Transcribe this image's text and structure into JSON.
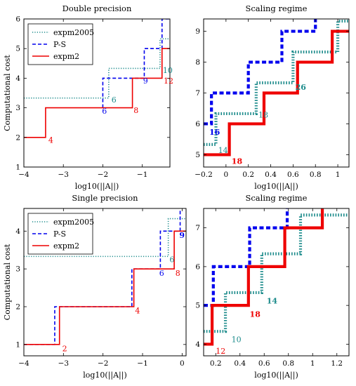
{
  "colors": {
    "expm2005": "#1a8a8a",
    "ps": "#0000ee",
    "expm2": "#ee0000",
    "frame": "#000000"
  },
  "chart_data": [
    {
      "type": "line",
      "title": "Double precision",
      "xlabel": "log10(||A||)",
      "ylabel": "Computational cost",
      "xlim": [
        -4,
        -0.3
      ],
      "ylim": [
        1,
        6
      ],
      "xticks": [
        -4,
        -3,
        -2,
        -1
      ],
      "yticks": [
        1,
        2,
        3,
        4,
        5,
        6
      ],
      "legend": {
        "position": "top-left",
        "entries": [
          "expm2005",
          "P-S",
          "expm2"
        ]
      },
      "series": [
        {
          "name": "expm2005",
          "style": "dotted",
          "width": "normal",
          "points": [
            [
              -4,
              3.33
            ],
            [
              -1.85,
              3.33
            ],
            [
              -1.85,
              4.33
            ],
            [
              -0.55,
              4.33
            ],
            [
              -0.55,
              5.33
            ],
            [
              -0.3,
              5.33
            ]
          ]
        },
        {
          "name": "P-S",
          "style": "dashed",
          "width": "normal",
          "points": [
            [
              -2,
              3
            ],
            [
              -2,
              4
            ],
            [
              -0.95,
              4
            ],
            [
              -0.95,
              5
            ],
            [
              -0.5,
              5
            ],
            [
              -0.5,
              6
            ],
            [
              -0.3,
              6
            ]
          ]
        },
        {
          "name": "expm2",
          "style": "solid",
          "width": "normal",
          "points": [
            [
              -4,
              2
            ],
            [
              -3.45,
              2
            ],
            [
              -3.45,
              3
            ],
            [
              -1.25,
              3
            ],
            [
              -1.25,
              4
            ],
            [
              -0.5,
              4
            ],
            [
              -0.5,
              5
            ],
            [
              -0.3,
              5
            ]
          ]
        }
      ],
      "annotations": [
        {
          "text": "4",
          "series": "expm2",
          "x": -3.38,
          "y": 1.82,
          "bold": false
        },
        {
          "text": "8",
          "series": "expm2",
          "x": -1.22,
          "y": 2.82,
          "bold": false
        },
        {
          "text": "12",
          "series": "expm2",
          "x": -0.46,
          "y": 3.82,
          "bold": false
        },
        {
          "text": "6",
          "series": "P-S",
          "x": -2.02,
          "y": 2.8,
          "bold": false
        },
        {
          "text": "9",
          "series": "P-S",
          "x": -0.98,
          "y": 3.82,
          "bold": false
        },
        {
          "text": "6",
          "series": "expm2005",
          "x": -1.78,
          "y": 3.18,
          "bold": false
        },
        {
          "text": "10",
          "series": "expm2005",
          "x": -0.48,
          "y": 4.18,
          "bold": false
        }
      ]
    },
    {
      "type": "line",
      "title": "Scaling regime",
      "xlabel": "log10(||A||)",
      "ylabel": "",
      "xlim": [
        -0.2,
        1.1
      ],
      "ylim": [
        4.6,
        9.4
      ],
      "xticks": [
        -0.2,
        0,
        0.2,
        0.4,
        0.6,
        0.8,
        1
      ],
      "yticks": [
        5,
        6,
        7,
        8,
        9
      ],
      "legend": null,
      "series": [
        {
          "name": "expm2005",
          "style": "dotted",
          "width": "thick",
          "points": [
            [
              -0.2,
              5.33
            ],
            [
              -0.09,
              5.33
            ],
            [
              -0.09,
              6.33
            ],
            [
              0.27,
              6.33
            ],
            [
              0.27,
              7.33
            ],
            [
              0.6,
              7.33
            ],
            [
              0.6,
              8.33
            ],
            [
              1.0,
              8.33
            ],
            [
              1.0,
              9.33
            ],
            [
              1.1,
              9.33
            ]
          ]
        },
        {
          "name": "P-S",
          "style": "dashed",
          "width": "thick",
          "points": [
            [
              -0.2,
              6
            ],
            [
              -0.13,
              6
            ],
            [
              -0.13,
              7
            ],
            [
              0.2,
              7
            ],
            [
              0.2,
              8
            ],
            [
              0.5,
              8
            ],
            [
              0.5,
              9
            ],
            [
              0.8,
              9
            ],
            [
              0.8,
              9.4
            ]
          ]
        },
        {
          "name": "expm2",
          "style": "solid",
          "width": "thick",
          "points": [
            [
              -0.2,
              5
            ],
            [
              0.03,
              5
            ],
            [
              0.03,
              6
            ],
            [
              0.34,
              6
            ],
            [
              0.34,
              7
            ],
            [
              0.64,
              7
            ],
            [
              0.64,
              8
            ],
            [
              0.95,
              8
            ],
            [
              0.95,
              9
            ],
            [
              1.1,
              9
            ]
          ]
        }
      ],
      "annotations": [
        {
          "text": "16",
          "series": "P-S",
          "x": -0.15,
          "y": 5.65,
          "bold": true
        },
        {
          "text": "18",
          "series": "expm2",
          "x": 0.05,
          "y": 4.7,
          "bold": true
        },
        {
          "text": "14",
          "series": "expm2005",
          "x": -0.07,
          "y": 5.05,
          "bold": false
        },
        {
          "text": "18",
          "series": "expm2005",
          "x": 0.29,
          "y": 6.2,
          "bold": false
        },
        {
          "text": "26",
          "series": "expm2005",
          "x": 0.62,
          "y": 7.1,
          "bold": true
        }
      ]
    },
    {
      "type": "line",
      "title": "Single precision",
      "xlabel": "log10(||A||)",
      "ylabel": "Computational cost",
      "xlim": [
        -4,
        0.1
      ],
      "ylim": [
        0.7,
        4.6
      ],
      "xticks": [
        -4,
        -3,
        -2,
        -1,
        0
      ],
      "yticks": [
        1,
        2,
        3,
        4
      ],
      "legend": {
        "position": "top-left",
        "entries": [
          "expm2005",
          "P-S",
          "expm2"
        ]
      },
      "series": [
        {
          "name": "expm2005",
          "style": "dotted",
          "width": "normal",
          "points": [
            [
              -4,
              3.33
            ],
            [
              -0.35,
              3.33
            ],
            [
              -0.35,
              4.33
            ],
            [
              0.1,
              4.33
            ]
          ]
        },
        {
          "name": "P-S",
          "style": "dashed",
          "width": "normal",
          "points": [
            [
              -4,
              1
            ],
            [
              -3.22,
              1
            ],
            [
              -3.22,
              2
            ],
            [
              -1.27,
              2
            ],
            [
              -1.27,
              3
            ],
            [
              -0.55,
              3
            ],
            [
              -0.55,
              4
            ],
            [
              -0.05,
              4
            ],
            [
              -0.05,
              4.6
            ]
          ]
        },
        {
          "name": "expm2",
          "style": "solid",
          "width": "normal",
          "points": [
            [
              -4,
              1
            ],
            [
              -3.1,
              1
            ],
            [
              -3.1,
              2
            ],
            [
              -1.22,
              2
            ],
            [
              -1.22,
              3
            ],
            [
              -0.2,
              3
            ],
            [
              -0.2,
              4
            ],
            [
              0.1,
              4
            ]
          ]
        }
      ],
      "annotations": [
        {
          "text": "2",
          "series": "expm2",
          "x": -3.03,
          "y": 0.82,
          "bold": false
        },
        {
          "text": "4",
          "series": "expm2",
          "x": -1.19,
          "y": 1.82,
          "bold": false
        },
        {
          "text": "8",
          "series": "expm2",
          "x": -0.17,
          "y": 2.82,
          "bold": false
        },
        {
          "text": "6",
          "series": "P-S",
          "x": -0.58,
          "y": 2.82,
          "bold": false
        },
        {
          "text": "9",
          "series": "P-S",
          "x": -0.07,
          "y": 3.82,
          "bold": true
        },
        {
          "text": "6",
          "series": "expm2005",
          "x": -0.32,
          "y": 3.18,
          "bold": false
        }
      ]
    },
    {
      "type": "line",
      "title": "Scaling regime",
      "xlabel": "log10(||A||)",
      "ylabel": "",
      "xlim": [
        0.1,
        1.3
      ],
      "ylim": [
        3.7,
        7.5
      ],
      "xticks": [
        0.2,
        0.4,
        0.6,
        0.8,
        1,
        1.2
      ],
      "yticks": [
        4,
        5,
        6,
        7
      ],
      "legend": null,
      "series": [
        {
          "name": "expm2005",
          "style": "dotted",
          "width": "thick",
          "points": [
            [
              0.1,
              4.33
            ],
            [
              0.28,
              4.33
            ],
            [
              0.28,
              5.33
            ],
            [
              0.58,
              5.33
            ],
            [
              0.58,
              6.33
            ],
            [
              0.9,
              6.33
            ],
            [
              0.9,
              7.33
            ],
            [
              1.3,
              7.33
            ]
          ]
        },
        {
          "name": "P-S",
          "style": "dashed",
          "width": "thick",
          "points": [
            [
              0.1,
              5
            ],
            [
              0.18,
              5
            ],
            [
              0.18,
              6
            ],
            [
              0.48,
              6
            ],
            [
              0.48,
              7
            ],
            [
              0.79,
              7
            ],
            [
              0.79,
              7.5
            ]
          ]
        },
        {
          "name": "expm2",
          "style": "solid",
          "width": "thick",
          "points": [
            [
              0.1,
              4
            ],
            [
              0.17,
              4
            ],
            [
              0.17,
              5
            ],
            [
              0.47,
              5
            ],
            [
              0.47,
              6
            ],
            [
              0.77,
              6
            ],
            [
              0.77,
              7
            ],
            [
              1.08,
              7
            ],
            [
              1.08,
              7.5
            ]
          ]
        }
      ],
      "annotations": [
        {
          "text": "12",
          "series": "expm2",
          "x": 0.2,
          "y": 3.75,
          "bold": false
        },
        {
          "text": "18",
          "series": "expm2",
          "x": 0.48,
          "y": 4.7,
          "bold": true
        },
        {
          "text": "10",
          "series": "expm2005",
          "x": 0.33,
          "y": 4.05,
          "bold": false
        },
        {
          "text": "14",
          "series": "expm2005",
          "x": 0.62,
          "y": 5.05,
          "bold": true
        }
      ]
    }
  ]
}
